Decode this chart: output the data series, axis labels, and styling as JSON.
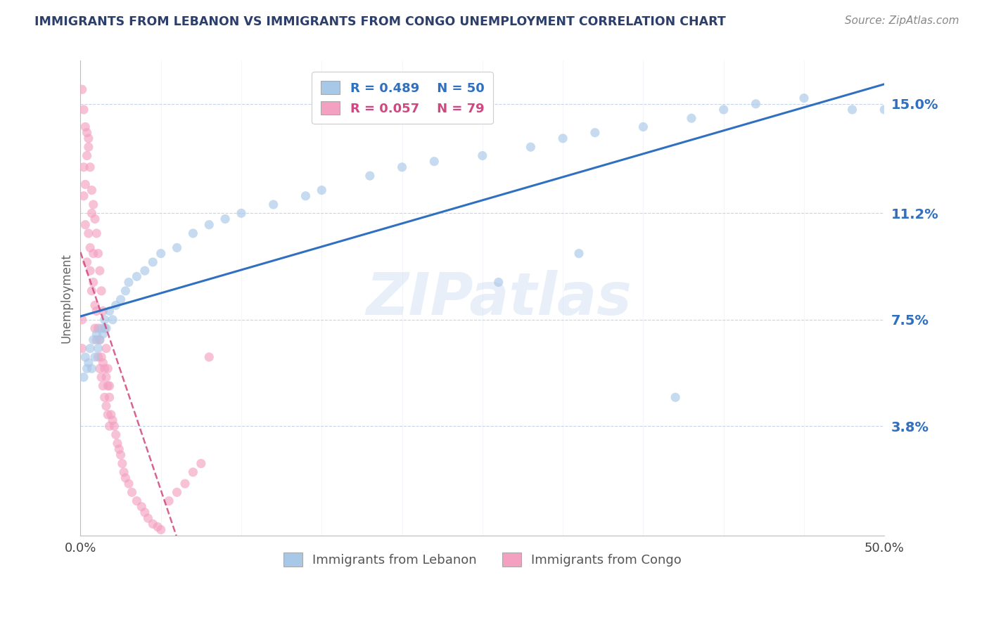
{
  "title": "IMMIGRANTS FROM LEBANON VS IMMIGRANTS FROM CONGO UNEMPLOYMENT CORRELATION CHART",
  "source": "Source: ZipAtlas.com",
  "ylabel": "Unemployment",
  "yticks": [
    0.038,
    0.075,
    0.112,
    0.15
  ],
  "ytick_labels": [
    "3.8%",
    "7.5%",
    "11.2%",
    "15.0%"
  ],
  "xlim": [
    0.0,
    0.5
  ],
  "ylim": [
    0.0,
    0.165
  ],
  "lebanon_R": 0.489,
  "lebanon_N": 50,
  "congo_R": 0.057,
  "congo_N": 79,
  "lebanon_color": "#a8c8e8",
  "congo_color": "#f4a0c0",
  "lebanon_line_color": "#3070c0",
  "congo_line_color": "#d04880",
  "congo_line_dash": [
    6,
    4
  ],
  "legend_label_lebanon": "Immigrants from Lebanon",
  "legend_label_congo": "Immigrants from Congo",
  "watermark": "ZIPatlas",
  "background_color": "#ffffff",
  "grid_color": "#c8d4e8",
  "title_color": "#2c3e6b",
  "axis_label_color": "#3070c0",
  "lebanon_scatter": {
    "x": [
      0.002,
      0.003,
      0.004,
      0.005,
      0.006,
      0.007,
      0.008,
      0.009,
      0.01,
      0.011,
      0.012,
      0.013,
      0.014,
      0.015,
      0.016,
      0.018,
      0.02,
      0.022,
      0.025,
      0.028,
      0.03,
      0.035,
      0.04,
      0.045,
      0.05,
      0.06,
      0.07,
      0.08,
      0.09,
      0.1,
      0.12,
      0.14,
      0.15,
      0.18,
      0.2,
      0.22,
      0.25,
      0.28,
      0.3,
      0.32,
      0.35,
      0.38,
      0.4,
      0.42,
      0.45,
      0.48,
      0.5,
      0.26,
      0.31,
      0.37
    ],
    "y": [
      0.055,
      0.062,
      0.058,
      0.06,
      0.065,
      0.058,
      0.068,
      0.062,
      0.07,
      0.065,
      0.068,
      0.072,
      0.07,
      0.075,
      0.072,
      0.078,
      0.075,
      0.08,
      0.082,
      0.085,
      0.088,
      0.09,
      0.092,
      0.095,
      0.098,
      0.1,
      0.105,
      0.108,
      0.11,
      0.112,
      0.115,
      0.118,
      0.12,
      0.125,
      0.128,
      0.13,
      0.132,
      0.135,
      0.138,
      0.14,
      0.142,
      0.145,
      0.148,
      0.15,
      0.152,
      0.148,
      0.148,
      0.088,
      0.098,
      0.048
    ]
  },
  "congo_scatter": {
    "x": [
      0.001,
      0.001,
      0.002,
      0.002,
      0.003,
      0.003,
      0.004,
      0.004,
      0.005,
      0.005,
      0.006,
      0.006,
      0.007,
      0.007,
      0.008,
      0.008,
      0.009,
      0.009,
      0.01,
      0.01,
      0.011,
      0.011,
      0.012,
      0.012,
      0.013,
      0.013,
      0.014,
      0.014,
      0.015,
      0.015,
      0.016,
      0.016,
      0.017,
      0.017,
      0.018,
      0.018,
      0.019,
      0.02,
      0.021,
      0.022,
      0.023,
      0.024,
      0.025,
      0.026,
      0.027,
      0.028,
      0.03,
      0.032,
      0.035,
      0.038,
      0.04,
      0.042,
      0.045,
      0.048,
      0.05,
      0.055,
      0.06,
      0.065,
      0.07,
      0.075,
      0.001,
      0.002,
      0.003,
      0.004,
      0.005,
      0.006,
      0.007,
      0.008,
      0.009,
      0.01,
      0.011,
      0.012,
      0.013,
      0.014,
      0.015,
      0.016,
      0.017,
      0.018,
      0.08
    ],
    "y": [
      0.065,
      0.075,
      0.128,
      0.118,
      0.122,
      0.108,
      0.132,
      0.095,
      0.138,
      0.105,
      0.1,
      0.092,
      0.085,
      0.112,
      0.088,
      0.098,
      0.08,
      0.072,
      0.078,
      0.068,
      0.072,
      0.062,
      0.068,
      0.058,
      0.062,
      0.055,
      0.06,
      0.052,
      0.058,
      0.048,
      0.055,
      0.045,
      0.052,
      0.042,
      0.048,
      0.038,
      0.042,
      0.04,
      0.038,
      0.035,
      0.032,
      0.03,
      0.028,
      0.025,
      0.022,
      0.02,
      0.018,
      0.015,
      0.012,
      0.01,
      0.008,
      0.006,
      0.004,
      0.003,
      0.002,
      0.012,
      0.015,
      0.018,
      0.022,
      0.025,
      0.155,
      0.148,
      0.142,
      0.14,
      0.135,
      0.128,
      0.12,
      0.115,
      0.11,
      0.105,
      0.098,
      0.092,
      0.085,
      0.078,
      0.072,
      0.065,
      0.058,
      0.052,
      0.062
    ]
  }
}
